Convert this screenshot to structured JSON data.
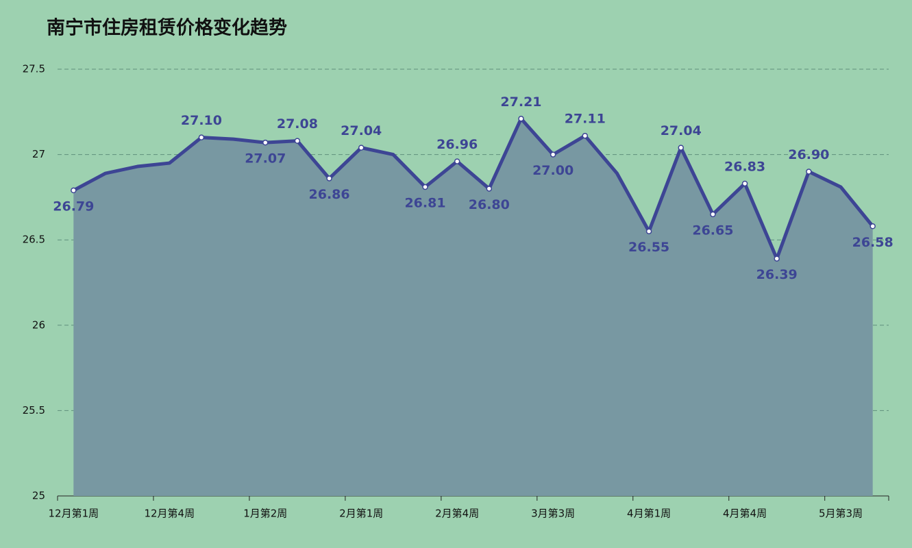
{
  "chart_data": {
    "type": "line",
    "title": "南宁市住房租赁价格变化趋势",
    "categories": [
      "12月第1周",
      null,
      null,
      "12月第4周",
      null,
      null,
      "1月第2周",
      null,
      null,
      "2月第1周",
      null,
      null,
      "2月第4周",
      null,
      null,
      "3月第3周",
      null,
      null,
      "4月第1周",
      null,
      null,
      "4月第4周",
      null,
      null,
      "5月第3周",
      null
    ],
    "series": [
      {
        "name": "租赁价格",
        "color": "#3d4594",
        "area_color": "#7898a2",
        "values": [
          26.79,
          26.89,
          26.93,
          26.95,
          27.1,
          27.09,
          27.07,
          27.08,
          26.86,
          27.04,
          27.0,
          26.81,
          26.96,
          26.8,
          27.21,
          27.0,
          27.11,
          26.89,
          26.55,
          27.04,
          26.65,
          26.83,
          26.39,
          26.9,
          26.81,
          26.58
        ],
        "value_labels": [
          "26.79",
          null,
          null,
          null,
          "27.10",
          null,
          "27.07",
          "27.08",
          "26.86",
          "27.04",
          null,
          "26.81",
          "26.96",
          "26.80",
          "27.21",
          "27.00",
          "27.11",
          null,
          "26.55",
          "27.04",
          "26.65",
          "26.83",
          "26.39",
          "26.90",
          null,
          "26.58"
        ]
      }
    ],
    "ylim": [
      25,
      27.5
    ],
    "yticks": [
      25,
      25.5,
      26,
      26.5,
      27,
      27.5
    ],
    "grid": true
  }
}
